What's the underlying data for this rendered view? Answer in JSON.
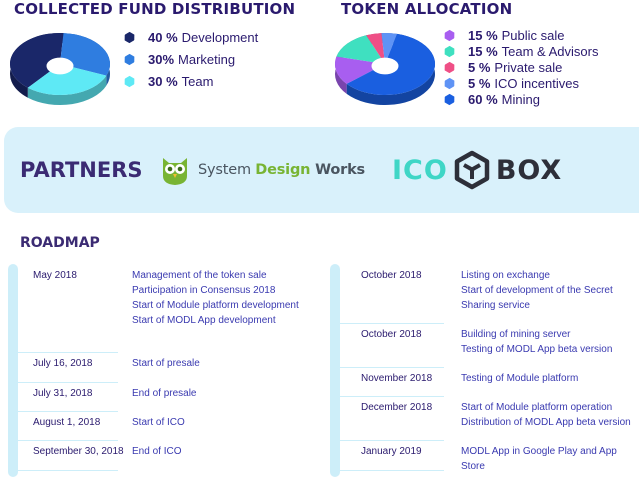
{
  "fund": {
    "title": "COLLECTED FUND DISTRIBUTION",
    "chart_data": {
      "type": "pie",
      "labels": [
        "Development",
        "Marketing",
        "Team"
      ],
      "values": [
        40,
        30,
        30
      ],
      "colors": [
        "#1a2769",
        "#2f7de0",
        "#5ee9f5"
      ]
    },
    "legend": [
      {
        "pct": "40 %",
        "label": "Development",
        "color": "#1a2769"
      },
      {
        "pct": "30%",
        "label": "Marketing",
        "color": "#2f7de0"
      },
      {
        "pct": "30 %",
        "label": "Team",
        "color": "#5ee9f5"
      }
    ]
  },
  "token": {
    "title": "TOKEN ALLOCATION",
    "chart_data": {
      "type": "pie",
      "labels": [
        "Public sale",
        "Team & Advisors",
        "Private sale",
        "ICO incentives",
        "Mining"
      ],
      "values": [
        15,
        15,
        5,
        5,
        60
      ],
      "colors": [
        "#a85ef0",
        "#3fe0c0",
        "#ef4f86",
        "#5f93f5",
        "#1a5fe0"
      ]
    },
    "legend": [
      {
        "pct": "15 %",
        "label": "Public sale",
        "color": "#a85ef0"
      },
      {
        "pct": "15 %",
        "label": "Team & Advisors",
        "color": "#3fe0c0"
      },
      {
        "pct": "5 %",
        "label": "Private sale",
        "color": "#ef4f86"
      },
      {
        "pct": "5 %",
        "label": "ICO incentives",
        "color": "#5f93f5"
      },
      {
        "pct": "60 %",
        "label": "Mining",
        "color": "#1a5fe0"
      }
    ]
  },
  "partners": {
    "title": "PARTNERS",
    "sdw": {
      "part1": "System ",
      "part2": "Design ",
      "part3": "Works"
    },
    "icobox": {
      "part1": "ICO",
      "part2": "BOX"
    }
  },
  "roadmap": {
    "title": "ROADMAP",
    "left": [
      {
        "date": "May 2018",
        "events": [
          "Management of the token sale",
          "Participation in Consensus 2018",
          "Start of Module platform development",
          "Start of MODL App development"
        ]
      },
      {
        "date": "July 16, 2018",
        "events": [
          "Start of presale"
        ]
      },
      {
        "date": "July 31, 2018",
        "events": [
          "End of presale"
        ]
      },
      {
        "date": "August 1, 2018",
        "events": [
          "Start of ICO"
        ]
      },
      {
        "date": "September 30, 2018",
        "events": [
          "End of ICO"
        ]
      }
    ],
    "right": [
      {
        "date": "October 2018",
        "events": [
          "Listing on exchange",
          "Start of development of the Secret Sharing service"
        ]
      },
      {
        "date": "October 2018",
        "events": [
          "Building of mining server",
          "Testing of MODL App beta version"
        ]
      },
      {
        "date": "November 2018",
        "events": [
          "Testing of Module platform"
        ]
      },
      {
        "date": "December 2018",
        "events": [
          "Start of Module platform operation",
          "Distribution of MODL App beta version"
        ]
      },
      {
        "date": "January 2019",
        "events": [
          "MODL App in Google Play and App Store"
        ]
      }
    ]
  }
}
